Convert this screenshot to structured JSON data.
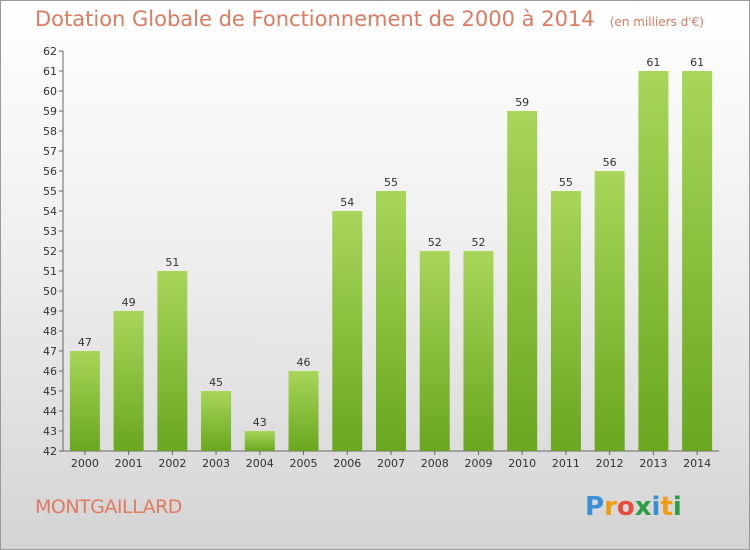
{
  "title": "Dotation Globale de Fonctionnement de 2000 à 2014",
  "subtitle": "(en milliers d'€)",
  "commune": "MONTGAILLARD",
  "logo_text": "Proxiti",
  "colors": {
    "title": "#e07a5f",
    "bar_top": "#a8d65a",
    "bar_bottom": "#6aa61f",
    "commune": "#e07a5f"
  },
  "chart_data": {
    "type": "bar",
    "title": "Dotation Globale de Fonctionnement de 2000 à 2014",
    "subtitle": "(en milliers d'€)",
    "xlabel": "",
    "ylabel": "",
    "categories": [
      "2000",
      "2001",
      "2002",
      "2003",
      "2004",
      "2005",
      "2006",
      "2007",
      "2008",
      "2009",
      "2010",
      "2011",
      "2012",
      "2013",
      "2014"
    ],
    "values": [
      47,
      49,
      51,
      45,
      43,
      46,
      54,
      55,
      52,
      52,
      59,
      55,
      56,
      61,
      61
    ],
    "ylim": [
      42,
      62
    ],
    "yticks": [
      42,
      43,
      44,
      45,
      46,
      47,
      48,
      49,
      50,
      51,
      52,
      53,
      54,
      55,
      56,
      57,
      58,
      59,
      60,
      61,
      62
    ],
    "grid": false,
    "legend": "none"
  }
}
